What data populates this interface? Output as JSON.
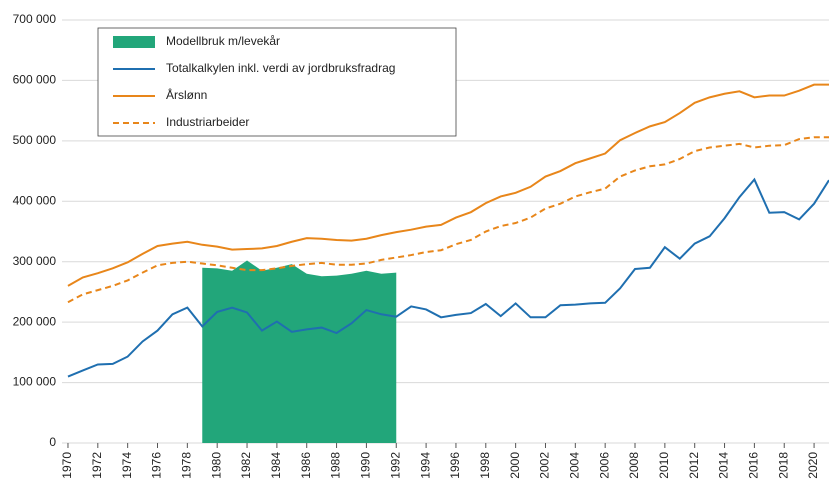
{
  "chart_data": {
    "type": "line",
    "x": [
      1970,
      1971,
      1972,
      1973,
      1974,
      1975,
      1976,
      1977,
      1978,
      1979,
      1980,
      1981,
      1982,
      1983,
      1984,
      1985,
      1986,
      1987,
      1988,
      1989,
      1990,
      1991,
      1992,
      1993,
      1994,
      1995,
      1996,
      1997,
      1998,
      1999,
      2000,
      2001,
      2002,
      2003,
      2004,
      2005,
      2006,
      2007,
      2008,
      2009,
      2010,
      2011,
      2012,
      2013,
      2014,
      2015,
      2016,
      2017,
      2018,
      2019,
      2020,
      2021
    ],
    "xlim": [
      1969.6,
      2021
    ],
    "xticks": [
      1970,
      1972,
      1974,
      1976,
      1978,
      1980,
      1982,
      1984,
      1986,
      1988,
      1990,
      1992,
      1994,
      1996,
      1998,
      2000,
      2002,
      2004,
      2006,
      2008,
      2010,
      2012,
      2014,
      2016,
      2018,
      2020
    ],
    "ylim": [
      0,
      700000
    ],
    "yticks": [
      0,
      {
        "value": 100000,
        "label": "100 000"
      },
      {
        "value": 200000,
        "label": "200 000"
      },
      {
        "value": 300000,
        "label": "300 000"
      },
      {
        "value": 400000,
        "label": "400 000"
      },
      {
        "value": 500000,
        "label": "500 000"
      },
      {
        "value": 600000,
        "label": "600 000"
      },
      {
        "value": 700000,
        "label": "700 000"
      }
    ],
    "grid": true,
    "series": [
      {
        "name": "Modellbruk m/levekår",
        "color": "#22a67a",
        "style": "area",
        "values": [
          null,
          null,
          null,
          null,
          null,
          null,
          null,
          null,
          null,
          290000,
          289000,
          285000,
          302000,
          285000,
          290000,
          296000,
          280000,
          276000,
          277000,
          280000,
          285000,
          280000,
          282000,
          null,
          null,
          null,
          null,
          null,
          null,
          null,
          null,
          null,
          null,
          null,
          null,
          null,
          null,
          null,
          null,
          null,
          null,
          null,
          null,
          null,
          null,
          null,
          null,
          null,
          null,
          null,
          null,
          null
        ]
      },
      {
        "name": "Totalkalkylen inkl. verdi av jordbruksfradrag",
        "color": "#1f6fb0",
        "style": "solid",
        "values": [
          110000,
          120000,
          130000,
          131000,
          143000,
          168000,
          186000,
          213000,
          224000,
          193000,
          217000,
          224000,
          216000,
          186000,
          201000,
          184000,
          188000,
          191000,
          182000,
          198000,
          220000,
          213000,
          209000,
          226000,
          221000,
          208000,
          212000,
          215000,
          230000,
          210000,
          231000,
          208000,
          208000,
          228000,
          229000,
          231000,
          232000,
          256000,
          288000,
          290000,
          324000,
          305000,
          330000,
          342000,
          372000,
          407000,
          436000,
          381000,
          382000,
          370000,
          396000,
          435000
        ]
      },
      {
        "name": "Årslønn",
        "color": "#e8861a",
        "style": "solid",
        "values": [
          260000,
          274000,
          281000,
          289000,
          299000,
          313000,
          326000,
          330000,
          333000,
          328000,
          325000,
          320000,
          321000,
          322000,
          326000,
          333000,
          339000,
          338000,
          336000,
          335000,
          338000,
          344000,
          349000,
          353000,
          358000,
          361000,
          373000,
          382000,
          397000,
          408000,
          414000,
          424000,
          441000,
          450000,
          463000,
          471000,
          479000,
          501000,
          513000,
          524000,
          531000,
          546000,
          563000,
          572000,
          578000,
          582000,
          572000,
          575000,
          575000,
          583000,
          593000,
          593000
        ]
      },
      {
        "name": "Industriarbeider",
        "color": "#e8861a",
        "style": "dashed",
        "values": [
          233000,
          246000,
          253000,
          260000,
          269000,
          282000,
          294000,
          298000,
          300000,
          297000,
          294000,
          290000,
          286000,
          286000,
          289000,
          293000,
          296000,
          298000,
          295000,
          295000,
          297000,
          303000,
          307000,
          311000,
          316000,
          319000,
          329000,
          336000,
          350000,
          359000,
          364000,
          373000,
          388000,
          396000,
          408000,
          415000,
          421000,
          441000,
          451000,
          458000,
          461000,
          470000,
          483000,
          489000,
          492000,
          495000,
          489000,
          492000,
          493000,
          503000,
          506000,
          506000
        ]
      }
    ]
  }
}
